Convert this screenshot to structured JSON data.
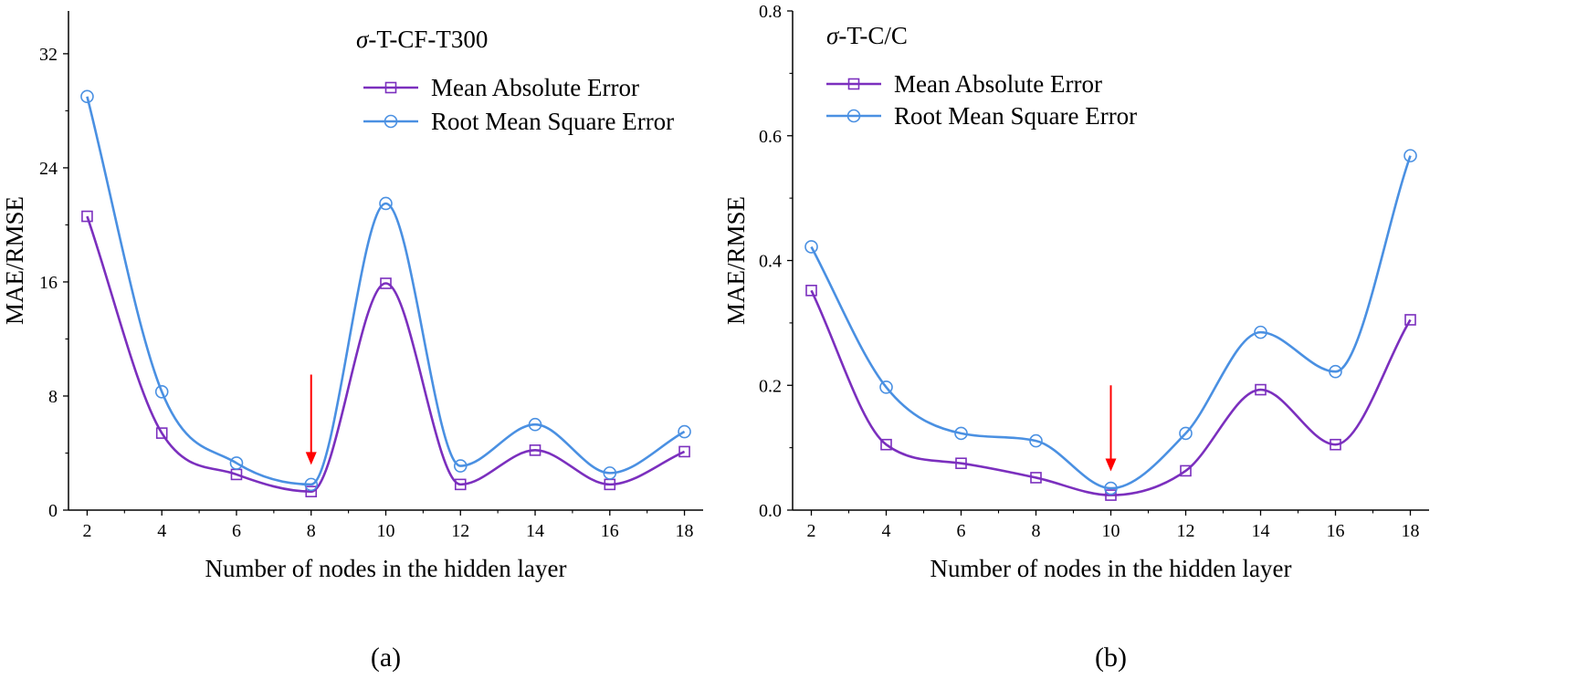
{
  "chart_data": [
    {
      "type": "line",
      "title": "σ-T-CF-T300",
      "xlabel": "Number of nodes in the hidden layer",
      "ylabel": "MAE/RMSE",
      "panel_label": "(a)",
      "x": [
        2,
        4,
        6,
        8,
        10,
        12,
        14,
        16,
        18
      ],
      "xlim": [
        1.5,
        18.5
      ],
      "ylim": [
        0,
        35
      ],
      "xticks": [
        2,
        4,
        6,
        8,
        10,
        12,
        14,
        16,
        18
      ],
      "yticks": [
        0,
        8,
        16,
        24,
        32
      ],
      "legend_position": "top-right",
      "grid": false,
      "series": [
        {
          "name": "Mean Absolute Error",
          "values": [
            20.6,
            5.4,
            2.5,
            1.3,
            15.9,
            1.8,
            4.2,
            1.8,
            4.1
          ],
          "color": "#7B2FBE",
          "marker": "square"
        },
        {
          "name": "Root Mean Square Error",
          "values": [
            29.0,
            8.3,
            3.3,
            1.8,
            21.5,
            3.1,
            6.0,
            2.6,
            5.5
          ],
          "color": "#4A90E2",
          "marker": "circle"
        }
      ],
      "annotations": [
        {
          "type": "arrow",
          "x": 8,
          "y_from": 9.5,
          "y_to": 3.3,
          "color": "#FF0000"
        }
      ]
    },
    {
      "type": "line",
      "title": "σ-T-C/C",
      "xlabel": "Number of nodes in the hidden layer",
      "ylabel": "MAE/RMSE",
      "panel_label": "(b)",
      "x": [
        2,
        4,
        6,
        8,
        10,
        12,
        14,
        16,
        18
      ],
      "xlim": [
        1.5,
        18.5
      ],
      "ylim": [
        0,
        0.8
      ],
      "xticks": [
        2,
        4,
        6,
        8,
        10,
        12,
        14,
        16,
        18
      ],
      "yticks": [
        0.0,
        0.2,
        0.4,
        0.6,
        0.8
      ],
      "legend_position": "top-left",
      "grid": false,
      "series": [
        {
          "name": "Mean Absolute Error",
          "values": [
            0.352,
            0.105,
            0.075,
            0.052,
            0.024,
            0.063,
            0.193,
            0.105,
            0.305
          ],
          "color": "#7B2FBE",
          "marker": "square"
        },
        {
          "name": "Root Mean Square Error",
          "values": [
            0.422,
            0.197,
            0.123,
            0.111,
            0.035,
            0.123,
            0.285,
            0.222,
            0.568
          ],
          "color": "#4A90E2",
          "marker": "circle"
        }
      ],
      "annotations": [
        {
          "type": "arrow",
          "x": 10,
          "y_from": 0.2,
          "y_to": 0.065,
          "color": "#FF0000"
        }
      ]
    }
  ]
}
